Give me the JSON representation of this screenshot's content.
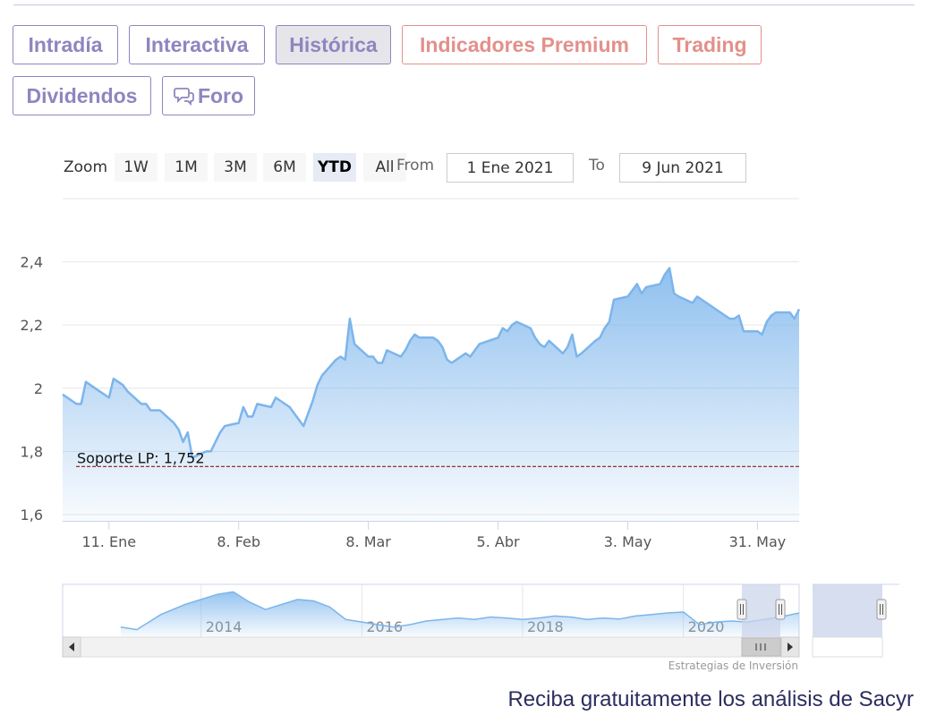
{
  "tabs": [
    {
      "label": "Intradía",
      "style": "purple"
    },
    {
      "label": "Interactiva",
      "style": "purple"
    },
    {
      "label": "Histórica",
      "style": "purple",
      "active": true
    },
    {
      "label": "Indicadores Premium",
      "style": "red"
    },
    {
      "label": "Trading",
      "style": "red"
    },
    {
      "label": "Dividendos",
      "style": "purple"
    },
    {
      "label": "Foro",
      "style": "purple",
      "icon": "speech-bubbles-icon"
    }
  ],
  "range_selector": {
    "zoom_label": "Zoom",
    "buttons": [
      "1W",
      "1M",
      "3M",
      "6M",
      "YTD",
      "All"
    ],
    "active": "YTD",
    "from_label": "From",
    "from_value": "1 Ene 2021",
    "to_label": "To",
    "to_value": "9 Jun 2021"
  },
  "colors": {
    "tab_purple": "#8e86bf",
    "tab_red": "#e3908a",
    "line": "#7cb5ec",
    "support_line": "#8b1a1a",
    "nav_mask": "#ccd6eb",
    "cta": "#2b2d5e"
  },
  "chart_data": {
    "type": "area",
    "title": "",
    "xlabel": "",
    "ylabel": "",
    "x_range": [
      "2021-01-01",
      "2021-06-09"
    ],
    "ylim": [
      1.58,
      2.6
    ],
    "yticks": [
      1.6,
      1.8,
      2,
      2.2,
      2.4
    ],
    "ytick_labels": [
      "1,6",
      "1,8",
      "2",
      "2,2",
      "2,4"
    ],
    "xticks": [
      {
        "date": "2021-01-11",
        "label": "11. Ene"
      },
      {
        "date": "2021-02-08",
        "label": "8. Feb"
      },
      {
        "date": "2021-03-08",
        "label": "8. Mar"
      },
      {
        "date": "2021-04-05",
        "label": "5. Abr"
      },
      {
        "date": "2021-05-03",
        "label": "3. May"
      },
      {
        "date": "2021-05-31",
        "label": "31. May"
      }
    ],
    "grid": true,
    "series": [
      {
        "points": [
          [
            "2021-01-01",
            1.98
          ],
          [
            "2021-01-04",
            1.95
          ],
          [
            "2021-01-05",
            1.95
          ],
          [
            "2021-01-06",
            2.02
          ],
          [
            "2021-01-08",
            2.0
          ],
          [
            "2021-01-11",
            1.97
          ],
          [
            "2021-01-12",
            2.03
          ],
          [
            "2021-01-14",
            2.01
          ],
          [
            "2021-01-15",
            1.99
          ],
          [
            "2021-01-18",
            1.95
          ],
          [
            "2021-01-19",
            1.95
          ],
          [
            "2021-01-20",
            1.93
          ],
          [
            "2021-01-22",
            1.93
          ],
          [
            "2021-01-25",
            1.89
          ],
          [
            "2021-01-26",
            1.87
          ],
          [
            "2021-01-27",
            1.83
          ],
          [
            "2021-01-28",
            1.86
          ],
          [
            "2021-01-29",
            1.78
          ],
          [
            "2021-02-01",
            1.8
          ],
          [
            "2021-02-02",
            1.8
          ],
          [
            "2021-02-03",
            1.83
          ],
          [
            "2021-02-04",
            1.86
          ],
          [
            "2021-02-05",
            1.88
          ],
          [
            "2021-02-08",
            1.89
          ],
          [
            "2021-02-09",
            1.94
          ],
          [
            "2021-02-10",
            1.91
          ],
          [
            "2021-02-11",
            1.91
          ],
          [
            "2021-02-12",
            1.95
          ],
          [
            "2021-02-15",
            1.94
          ],
          [
            "2021-02-16",
            1.97
          ],
          [
            "2021-02-17",
            1.96
          ],
          [
            "2021-02-19",
            1.94
          ],
          [
            "2021-02-22",
            1.88
          ],
          [
            "2021-02-23",
            1.92
          ],
          [
            "2021-02-24",
            1.96
          ],
          [
            "2021-02-25",
            2.01
          ],
          [
            "2021-02-26",
            2.04
          ],
          [
            "2021-03-01",
            2.09
          ],
          [
            "2021-03-02",
            2.1
          ],
          [
            "2021-03-03",
            2.09
          ],
          [
            "2021-03-04",
            2.22
          ],
          [
            "2021-03-05",
            2.14
          ],
          [
            "2021-03-08",
            2.1
          ],
          [
            "2021-03-09",
            2.1
          ],
          [
            "2021-03-10",
            2.08
          ],
          [
            "2021-03-11",
            2.08
          ],
          [
            "2021-03-12",
            2.12
          ],
          [
            "2021-03-15",
            2.1
          ],
          [
            "2021-03-16",
            2.12
          ],
          [
            "2021-03-17",
            2.15
          ],
          [
            "2021-03-18",
            2.17
          ],
          [
            "2021-03-19",
            2.16
          ],
          [
            "2021-03-22",
            2.16
          ],
          [
            "2021-03-23",
            2.15
          ],
          [
            "2021-03-24",
            2.13
          ],
          [
            "2021-03-25",
            2.09
          ],
          [
            "2021-03-26",
            2.08
          ],
          [
            "2021-03-29",
            2.11
          ],
          [
            "2021-03-30",
            2.1
          ],
          [
            "2021-03-31",
            2.12
          ],
          [
            "2021-04-01",
            2.14
          ],
          [
            "2021-04-05",
            2.16
          ],
          [
            "2021-04-06",
            2.19
          ],
          [
            "2021-04-07",
            2.18
          ],
          [
            "2021-04-08",
            2.2
          ],
          [
            "2021-04-09",
            2.21
          ],
          [
            "2021-04-12",
            2.19
          ],
          [
            "2021-04-13",
            2.16
          ],
          [
            "2021-04-14",
            2.14
          ],
          [
            "2021-04-15",
            2.13
          ],
          [
            "2021-04-16",
            2.15
          ],
          [
            "2021-04-19",
            2.11
          ],
          [
            "2021-04-20",
            2.13
          ],
          [
            "2021-04-21",
            2.17
          ],
          [
            "2021-04-22",
            2.1
          ],
          [
            "2021-04-23",
            2.11
          ],
          [
            "2021-04-26",
            2.15
          ],
          [
            "2021-04-27",
            2.16
          ],
          [
            "2021-04-28",
            2.19
          ],
          [
            "2021-04-29",
            2.21
          ],
          [
            "2021-04-30",
            2.28
          ],
          [
            "2021-05-03",
            2.29
          ],
          [
            "2021-05-04",
            2.31
          ],
          [
            "2021-05-05",
            2.33
          ],
          [
            "2021-05-06",
            2.3
          ],
          [
            "2021-05-07",
            2.32
          ],
          [
            "2021-05-10",
            2.33
          ],
          [
            "2021-05-11",
            2.36
          ],
          [
            "2021-05-12",
            2.38
          ],
          [
            "2021-05-13",
            2.3
          ],
          [
            "2021-05-14",
            2.29
          ],
          [
            "2021-05-17",
            2.27
          ],
          [
            "2021-05-18",
            2.29
          ],
          [
            "2021-05-19",
            2.28
          ],
          [
            "2021-05-20",
            2.27
          ],
          [
            "2021-05-21",
            2.26
          ],
          [
            "2021-05-24",
            2.23
          ],
          [
            "2021-05-25",
            2.22
          ],
          [
            "2021-05-26",
            2.22
          ],
          [
            "2021-05-27",
            2.23
          ],
          [
            "2021-05-28",
            2.18
          ],
          [
            "2021-05-31",
            2.18
          ],
          [
            "2021-06-01",
            2.17
          ],
          [
            "2021-06-02",
            2.21
          ],
          [
            "2021-06-03",
            2.23
          ],
          [
            "2021-06-04",
            2.24
          ],
          [
            "2021-06-07",
            2.24
          ],
          [
            "2021-06-08",
            2.22
          ],
          [
            "2021-06-09",
            2.25
          ]
        ]
      }
    ],
    "annotations": [
      {
        "type": "hline",
        "y": 1.752,
        "label": "Soporte LP: 1,752",
        "style": "dashed"
      }
    ],
    "navigator": {
      "years": [
        "2014",
        "2016",
        "2018",
        "2020"
      ],
      "overview": [
        [
          2013.0,
          1.2
        ],
        [
          2013.2,
          1.15
        ],
        [
          2013.5,
          1.45
        ],
        [
          2013.8,
          1.65
        ],
        [
          2014.0,
          1.75
        ],
        [
          2014.2,
          1.85
        ],
        [
          2014.4,
          1.9
        ],
        [
          2014.6,
          1.7
        ],
        [
          2014.8,
          1.55
        ],
        [
          2015.0,
          1.65
        ],
        [
          2015.2,
          1.75
        ],
        [
          2015.4,
          1.72
        ],
        [
          2015.6,
          1.6
        ],
        [
          2015.8,
          1.35
        ],
        [
          2016.0,
          1.3
        ],
        [
          2016.2,
          1.25
        ],
        [
          2016.4,
          1.2
        ],
        [
          2016.6,
          1.25
        ],
        [
          2016.8,
          1.32
        ],
        [
          2017.0,
          1.35
        ],
        [
          2017.2,
          1.38
        ],
        [
          2017.4,
          1.35
        ],
        [
          2017.6,
          1.4
        ],
        [
          2017.8,
          1.38
        ],
        [
          2018.0,
          1.35
        ],
        [
          2018.2,
          1.38
        ],
        [
          2018.4,
          1.42
        ],
        [
          2018.6,
          1.4
        ],
        [
          2018.8,
          1.35
        ],
        [
          2019.0,
          1.38
        ],
        [
          2019.2,
          1.36
        ],
        [
          2019.4,
          1.42
        ],
        [
          2019.6,
          1.45
        ],
        [
          2019.8,
          1.48
        ],
        [
          2020.0,
          1.5
        ],
        [
          2020.2,
          1.25
        ],
        [
          2020.4,
          1.3
        ],
        [
          2020.6,
          1.32
        ],
        [
          2020.8,
          1.3
        ],
        [
          2021.0,
          1.35
        ],
        [
          2021.2,
          1.4
        ],
        [
          2021.44,
          1.48
        ]
      ]
    }
  },
  "credit": "Estrategias de Inversión",
  "cta": "Reciba gratuitamente los análisis de Sacyr"
}
